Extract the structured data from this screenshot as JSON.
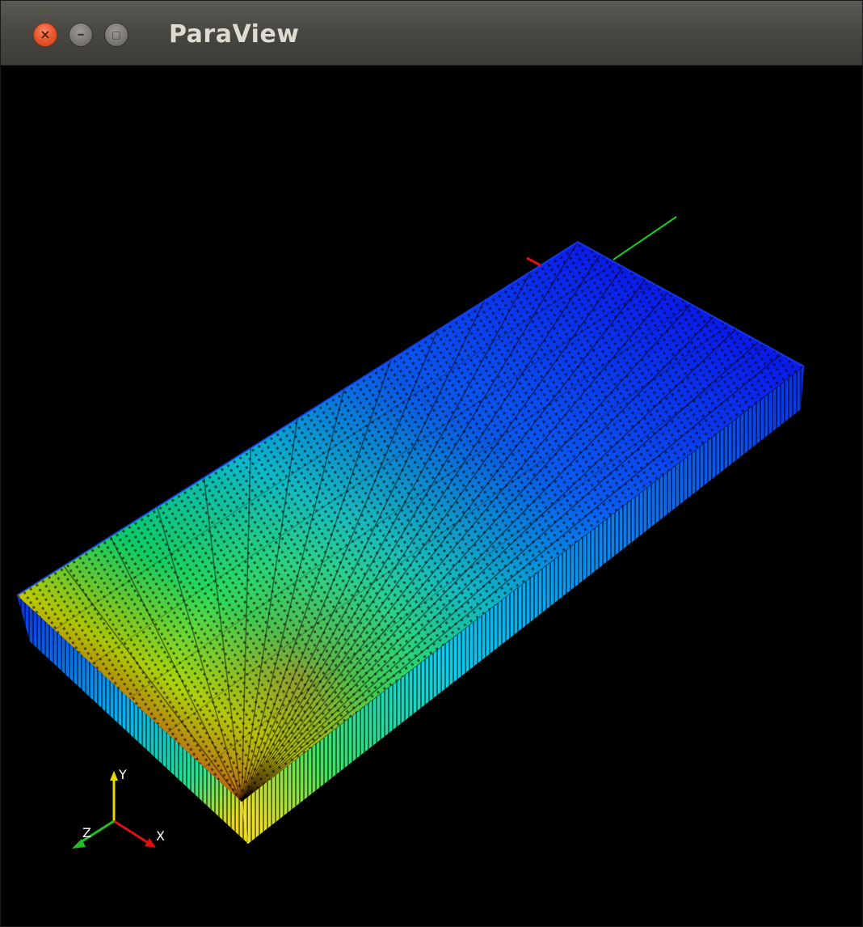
{
  "window": {
    "title": "ParaView",
    "controls": {
      "close_glyph": "×",
      "minimize_glyph": "–",
      "maximize_glyph": "□"
    }
  },
  "viewport": {
    "background": "#000000",
    "orientation_axes": {
      "x_label": "X",
      "y_label": "Y",
      "z_label": "Z",
      "x_color": "#e01010",
      "y_color": "#e8d800",
      "z_color": "#20c020"
    },
    "colormap": [
      "#0a1ce8",
      "#0a5cf0",
      "#00c8f5",
      "#00e07a",
      "#c8d800",
      "#e03010"
    ]
  }
}
